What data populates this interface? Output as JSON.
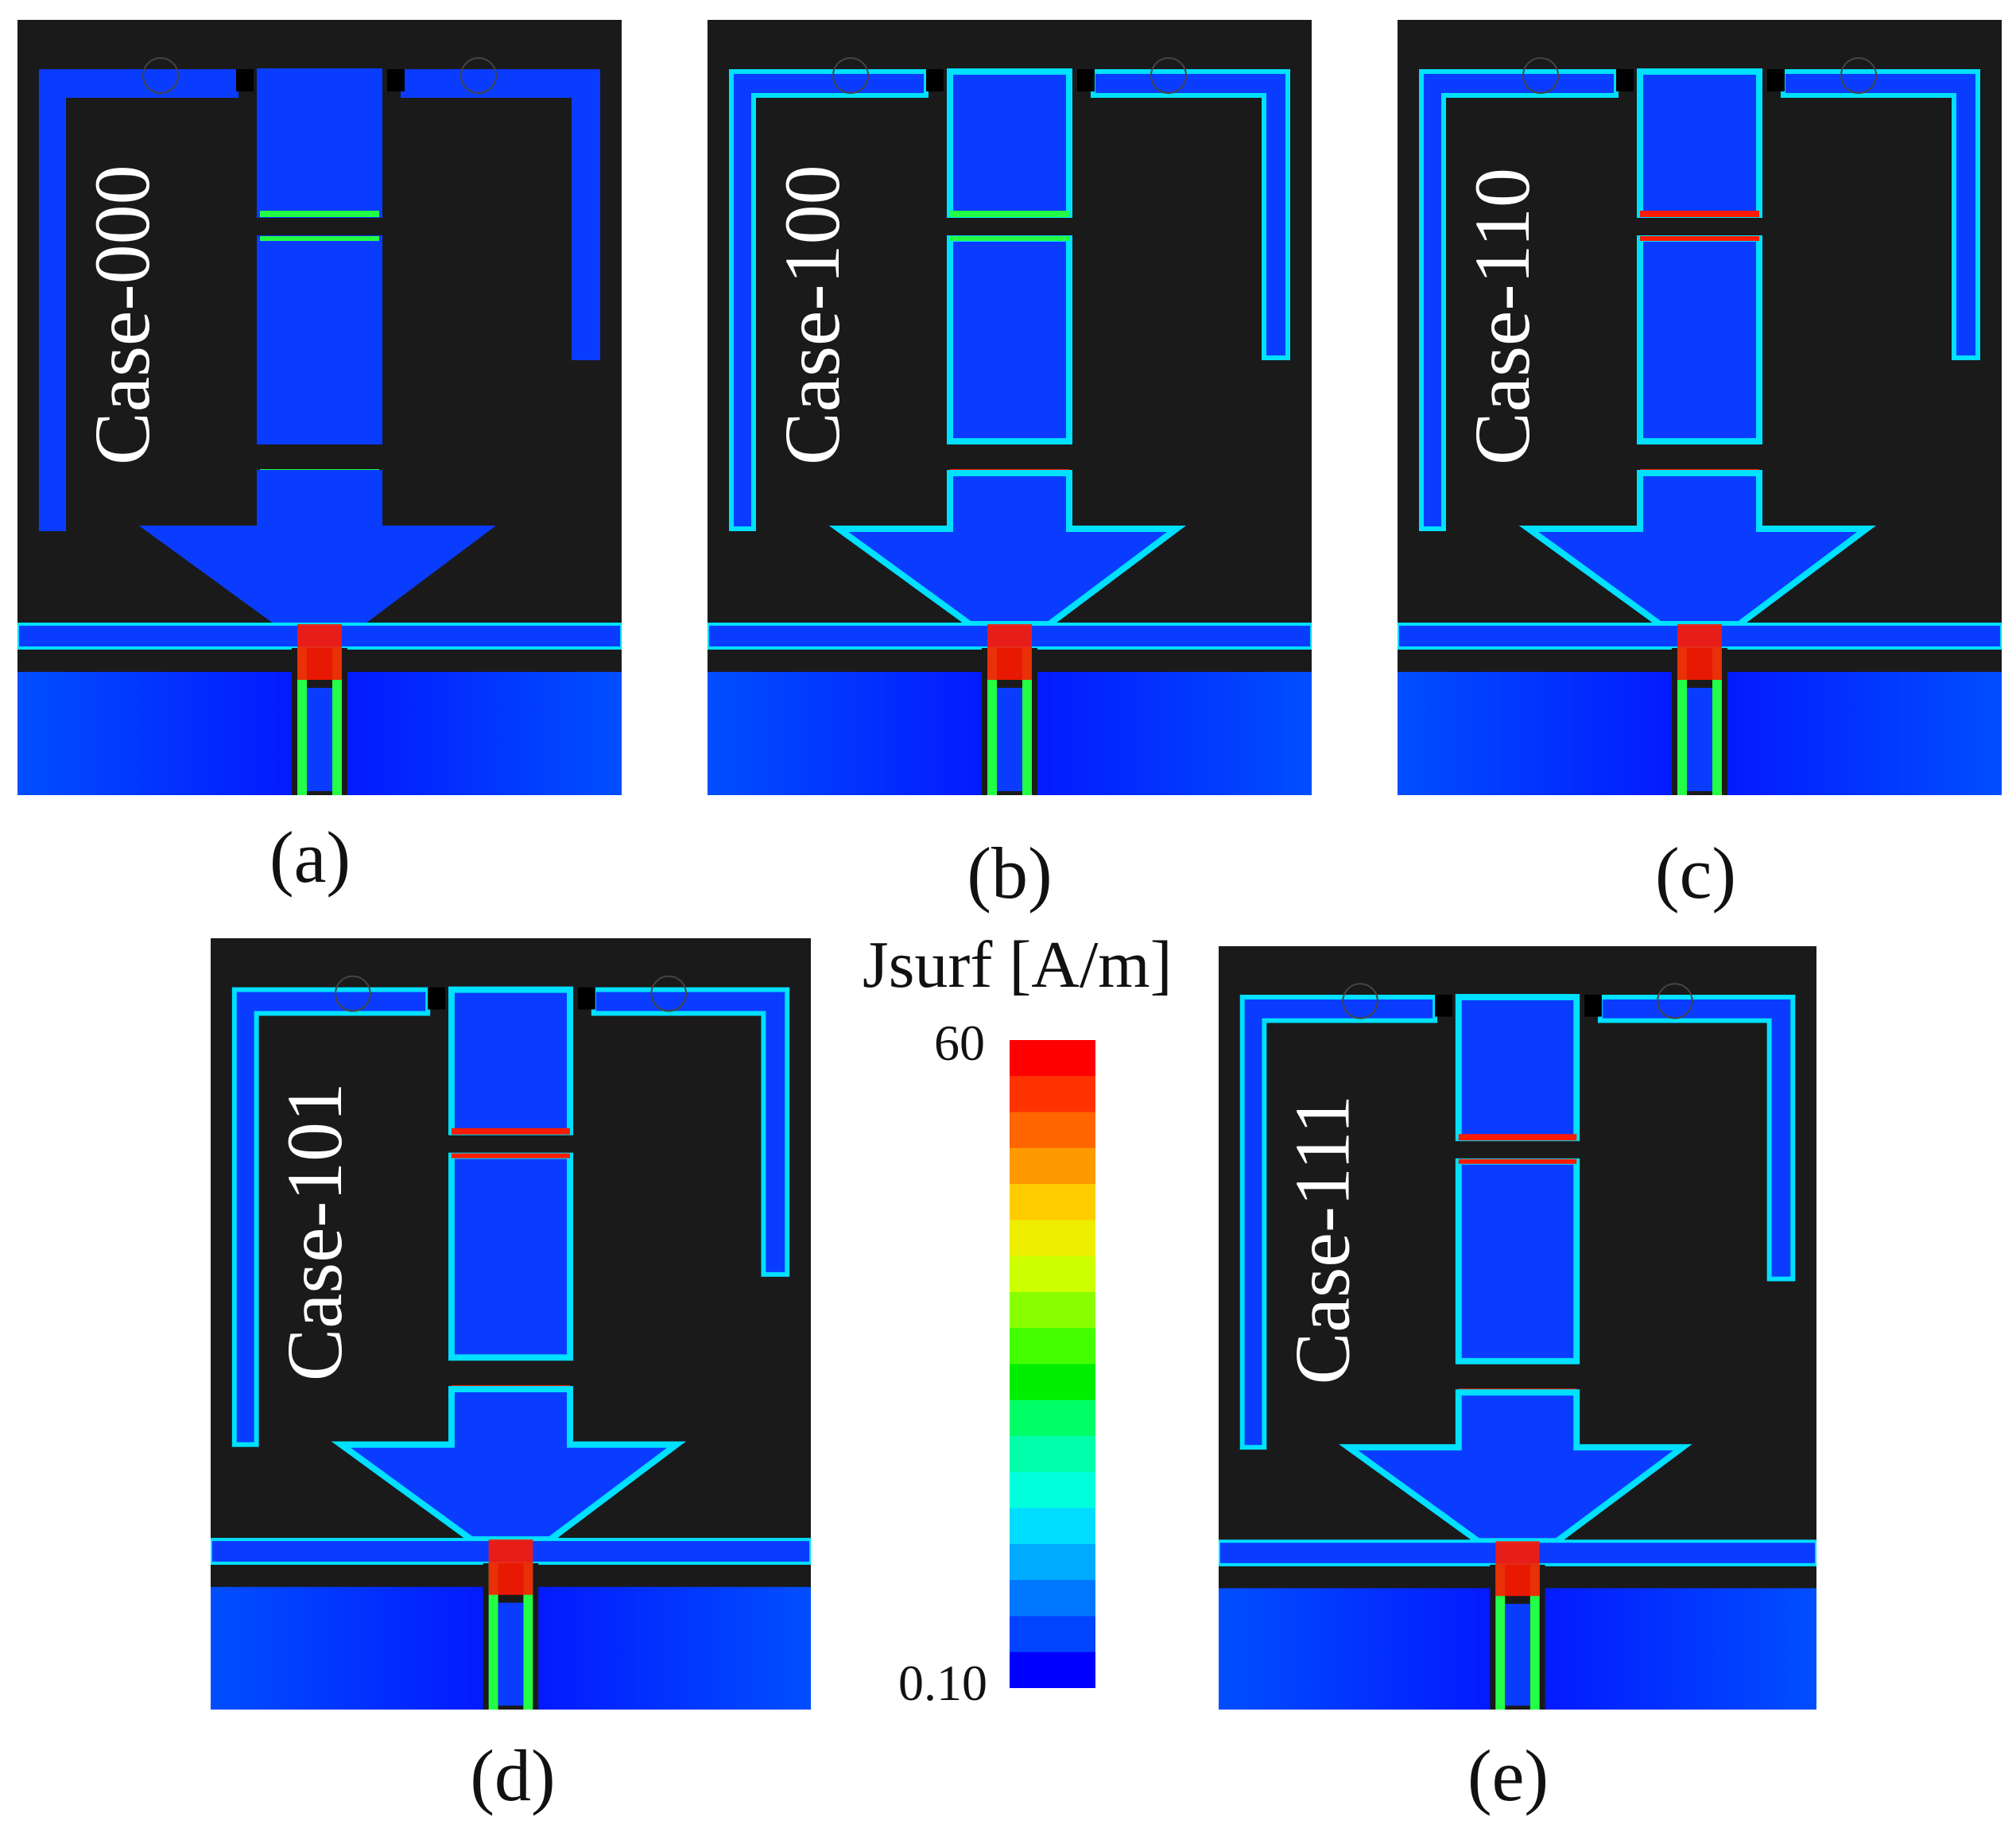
{
  "figure": {
    "panels": [
      {
        "case_label": "Case-000",
        "caption": "(a)"
      },
      {
        "case_label": "Case-100",
        "caption": "(b)"
      },
      {
        "case_label": "Case-110",
        "caption": "(c)"
      },
      {
        "case_label": "Case-101",
        "caption": "(d)"
      },
      {
        "case_label": "Case-111",
        "caption": "(e)"
      }
    ],
    "legend": {
      "title": "Jsurf [A/m]",
      "max": "60",
      "min": "0.10",
      "colors": [
        "#ff0000",
        "#ff3300",
        "#ff6600",
        "#ff9900",
        "#ffcc00",
        "#eeee00",
        "#ccff00",
        "#88ff00",
        "#44ff00",
        "#00ee00",
        "#00ff66",
        "#00ffaa",
        "#00ffdd",
        "#00ddff",
        "#00aaff",
        "#0077ff",
        "#0044ff",
        "#0000ff"
      ]
    },
    "colors": {
      "background": "#1a1a1a",
      "substrate": "#0000ff",
      "antenna": "#0a3cff",
      "hotspot": "#ff1a00",
      "edge_green": "#22ff44",
      "edge_cyan": "#00e0ff"
    }
  }
}
